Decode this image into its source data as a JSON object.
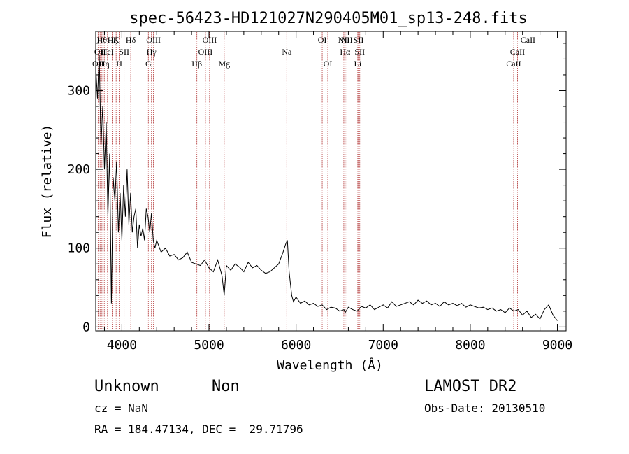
{
  "chart_data": {
    "type": "line",
    "title": "spec-56423-HD121027N290405M01_sp13-248.fits",
    "xlabel": "Wavelength (Å)",
    "ylabel": "Flux (relative)",
    "xlim": [
      3700,
      9100
    ],
    "ylim": [
      -5,
      375
    ],
    "x_ticks": [
      4000,
      5000,
      6000,
      7000,
      8000,
      9000
    ],
    "y_ticks": [
      0,
      100,
      200,
      300
    ],
    "grid": false,
    "series": [
      {
        "x": [
          3700,
          3720,
          3740,
          3760,
          3780,
          3800,
          3820,
          3840,
          3860,
          3880,
          3900,
          3920,
          3940,
          3960,
          3980,
          4000,
          4020,
          4040,
          4060,
          4080,
          4100,
          4120,
          4140,
          4160,
          4180,
          4200,
          4220,
          4240,
          4260,
          4280,
          4300,
          4320,
          4340,
          4360,
          4380,
          4400,
          4450,
          4500,
          4550,
          4600,
          4650,
          4700,
          4750,
          4800,
          4850,
          4900,
          4950,
          5000,
          5050,
          5100,
          5150,
          5175,
          5200,
          5250,
          5300,
          5350,
          5400,
          5450,
          5500,
          5550,
          5600,
          5650,
          5700,
          5750,
          5800,
          5850,
          5880,
          5900,
          5920,
          5950,
          5970,
          6000,
          6050,
          6100,
          6150,
          6200,
          6250,
          6300,
          6350,
          6400,
          6450,
          6500,
          6550,
          6563,
          6600,
          6650,
          6700,
          6750,
          6800,
          6850,
          6900,
          6950,
          7000,
          7050,
          7100,
          7150,
          7200,
          7250,
          7300,
          7350,
          7400,
          7450,
          7500,
          7550,
          7600,
          7650,
          7700,
          7750,
          7800,
          7850,
          7900,
          7950,
          8000,
          8050,
          8100,
          8150,
          8200,
          8250,
          8300,
          8350,
          8400,
          8450,
          8500,
          8550,
          8600,
          8650,
          8700,
          8750,
          8800,
          8850,
          8900,
          8950,
          9000
        ],
        "y": [
          330,
          290,
          345,
          230,
          280,
          200,
          260,
          140,
          220,
          30,
          190,
          160,
          210,
          120,
          170,
          110,
          180,
          140,
          200,
          130,
          170,
          120,
          140,
          150,
          100,
          130,
          115,
          125,
          110,
          150,
          140,
          120,
          145,
          110,
          100,
          110,
          95,
          100,
          90,
          92,
          85,
          88,
          95,
          82,
          80,
          78,
          85,
          75,
          70,
          85,
          65,
          40,
          78,
          72,
          80,
          76,
          70,
          82,
          75,
          78,
          72,
          68,
          70,
          75,
          80,
          95,
          105,
          110,
          70,
          40,
          32,
          38,
          30,
          33,
          28,
          30,
          26,
          28,
          22,
          25,
          24,
          20,
          22,
          18,
          25,
          22,
          20,
          26,
          24,
          28,
          22,
          25,
          28,
          24,
          32,
          26,
          28,
          30,
          32,
          28,
          34,
          30,
          33,
          28,
          30,
          26,
          32,
          28,
          30,
          27,
          30,
          25,
          28,
          26,
          24,
          25,
          22,
          24,
          20,
          22,
          18,
          24,
          20,
          22,
          15,
          20,
          12,
          16,
          10,
          22,
          28,
          15,
          8
        ]
      }
    ],
    "line_markers": [
      {
        "wl": 3727,
        "label": "OII",
        "row": 3
      },
      {
        "wl": 3750,
        "label": "OII",
        "row": 2
      },
      {
        "wl": 3771,
        "label": "Hθ",
        "row": 1
      },
      {
        "wl": 3798,
        "label": "Hη",
        "row": 3
      },
      {
        "wl": 3835,
        "label": "HeI",
        "row": 2
      },
      {
        "wl": 3889,
        "label": "Hζ",
        "row": 1
      },
      {
        "wl": 3934,
        "label": "K",
        "row": 1
      },
      {
        "wl": 3969,
        "label": "H",
        "row": 3
      },
      {
        "wl": 4026,
        "label": "SII",
        "row": 2
      },
      {
        "wl": 4102,
        "label": "Hδ",
        "row": 1
      },
      {
        "wl": 4304,
        "label": "G",
        "row": 3
      },
      {
        "wl": 4340,
        "label": "Hγ",
        "row": 2
      },
      {
        "wl": 4363,
        "label": "OIII",
        "row": 1
      },
      {
        "wl": 4861,
        "label": "Hβ",
        "row": 3
      },
      {
        "wl": 4959,
        "label": "OIII",
        "row": 2
      },
      {
        "wl": 5007,
        "label": "OIII",
        "row": 1
      },
      {
        "wl": 5175,
        "label": "Mg",
        "row": 3
      },
      {
        "wl": 5893,
        "label": "Na",
        "row": 2
      },
      {
        "wl": 6300,
        "label": "OI",
        "row": 1
      },
      {
        "wl": 6364,
        "label": "OI",
        "row": 3
      },
      {
        "wl": 6548,
        "label": "NII",
        "row": 1
      },
      {
        "wl": 6563,
        "label": "Hα",
        "row": 2
      },
      {
        "wl": 6583,
        "label": "NII",
        "row": 1
      },
      {
        "wl": 6708,
        "label": "Li",
        "row": 3
      },
      {
        "wl": 6717,
        "label": "SII",
        "row": 1
      },
      {
        "wl": 6731,
        "label": "SII",
        "row": 2
      },
      {
        "wl": 8498,
        "label": "CaII",
        "row": 3
      },
      {
        "wl": 8542,
        "label": "CaII",
        "row": 2
      },
      {
        "wl": 8662,
        "label": "CaII",
        "row": 1
      }
    ]
  },
  "info": {
    "object_class": "Unknown",
    "subclass": "Non",
    "survey": "LAMOST DR2",
    "cz": "cz = NaN",
    "obs_date": "Obs-Date: 20130510",
    "coords": "RA = 184.47134, DEC =  29.71796"
  },
  "colors": {
    "spectrum": "#000000",
    "marker_line": "#b03030",
    "axes": "#000000"
  }
}
